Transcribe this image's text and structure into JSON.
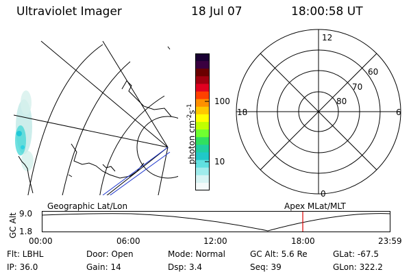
{
  "header": {
    "instrument": "Ultraviolet Imager",
    "date": "18 Jul 07",
    "time": "18:00:58 UT"
  },
  "colorbar": {
    "unit_label": "photon cm",
    "unit_sup1": "-2",
    "unit_mid": "s",
    "unit_sup2": "-1",
    "tick_100": "100",
    "tick_10": "10",
    "colors": [
      "#1a0033",
      "#3a0040",
      "#6a0000",
      "#a00010",
      "#e00020",
      "#ff4000",
      "#ff9000",
      "#ffc800",
      "#ffff00",
      "#c0ff00",
      "#70ff30",
      "#30e060",
      "#20d0a0",
      "#20c8c8",
      "#60e0e0",
      "#a0ecec",
      "#d8f4f4",
      "#f4fafa"
    ]
  },
  "polar_plot": {
    "label_top": "12",
    "label_left": "18",
    "label_right": "6",
    "label_bottom": "0",
    "ring_labels": [
      "60",
      "70",
      "80"
    ]
  },
  "timeline": {
    "left_caption": "Geographic Lat/Lon",
    "right_caption": "Apex  MLat/MLT",
    "y_label": "GC Alt",
    "y_top": "9.0",
    "y_bottom": "1.8",
    "x_ticks": [
      "00:00",
      "06:00",
      "12:00",
      "18:00",
      "23:59"
    ],
    "marker_color": "#dd0000"
  },
  "status": {
    "filter": "Flt: LBHL",
    "door": "Door: Open",
    "mode": "Mode: Normal",
    "gc_alt": "GC Alt: 5.6 Re",
    "glat": "GLat: -67.5",
    "ip": "IP: 36.0",
    "gain": "Gain: 14",
    "dsp": "Dsp:    3.4",
    "seq": "Seq: 39",
    "glon": "GLon: 322.2"
  }
}
